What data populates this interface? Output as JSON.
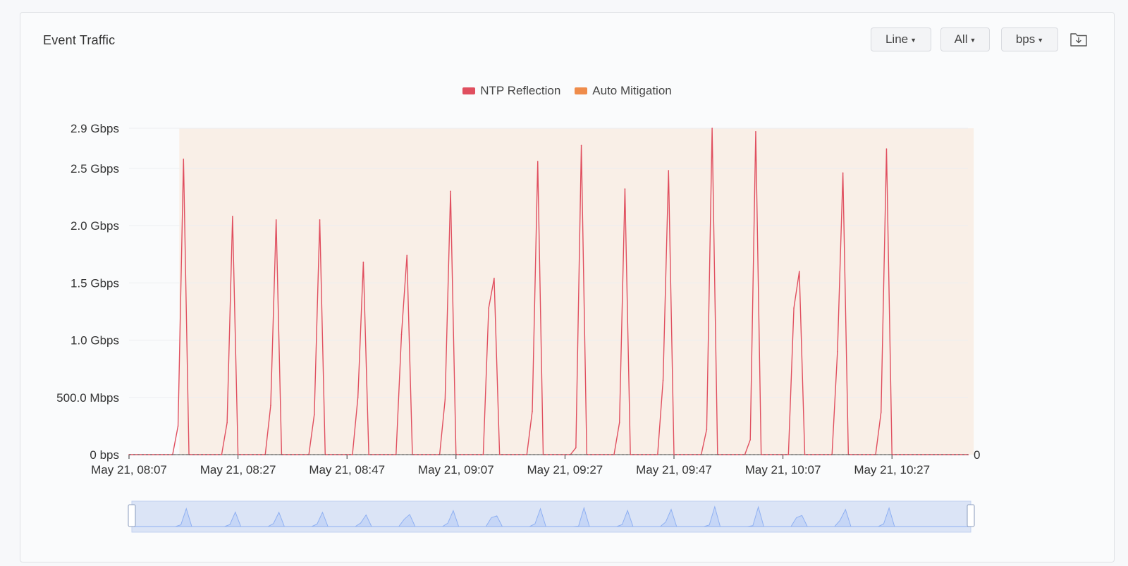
{
  "card": {
    "title": "Event Traffic"
  },
  "toolbar": {
    "chart_type": "Line",
    "filter": "All",
    "unit": "bps",
    "download_icon": "folder-download-icon"
  },
  "colors": {
    "ntp": "#e04f5f",
    "mitigation": "#ef8c4b",
    "mitigation_band": "#f9efe7",
    "zoom_bg": "#dbe4f6",
    "zoom_line": "#8fb0f2"
  },
  "chart_data": {
    "type": "line",
    "title": "",
    "legend": [
      "NTP Reflection",
      "Auto Mitigation"
    ],
    "legend_position": "top-center",
    "x_ticks": [
      "May 21, 08:07",
      "May 21, 08:27",
      "May 21, 08:47",
      "May 21, 09:07",
      "May 21, 09:27",
      "May 21, 09:47",
      "May 21, 10:07",
      "May 21, 10:27"
    ],
    "x_start_minutes": 487,
    "x_end_minutes": 641,
    "y_ticks": [
      "0 bps",
      "500.0 Mbps",
      "1.0 Gbps",
      "1.5 Gbps",
      "2.0 Gbps",
      "2.5 Gbps",
      "2.9 Gbps"
    ],
    "y_tick_values": [
      0,
      0.5,
      1.0,
      1.5,
      2.0,
      2.5,
      2.85
    ],
    "ylim": [
      0,
      2.85
    ],
    "y_unit": "Gbps",
    "right_axis_label": "0",
    "grid": true,
    "mitigation_window": [
      "08:17",
      "10:42"
    ],
    "series": [
      {
        "name": "NTP Reflection",
        "points": [
          [
            "08:07",
            0
          ],
          [
            "08:15",
            0
          ],
          [
            "08:16",
            0.25
          ],
          [
            "08:17",
            2.58
          ],
          [
            "08:18",
            0
          ],
          [
            "08:24",
            0
          ],
          [
            "08:25",
            0.28
          ],
          [
            "08:26",
            2.08
          ],
          [
            "08:27",
            0
          ],
          [
            "08:32",
            0
          ],
          [
            "08:33",
            0.43
          ],
          [
            "08:34",
            2.05
          ],
          [
            "08:35",
            0
          ],
          [
            "08:40",
            0
          ],
          [
            "08:41",
            0.35
          ],
          [
            "08:42",
            2.05
          ],
          [
            "08:43",
            0
          ],
          [
            "08:48",
            0
          ],
          [
            "08:49",
            0.5
          ],
          [
            "08:50",
            1.68
          ],
          [
            "08:51",
            0
          ],
          [
            "08:56",
            0
          ],
          [
            "08:57",
            1.05
          ],
          [
            "08:58",
            1.74
          ],
          [
            "08:59",
            0
          ],
          [
            "09:04",
            0
          ],
          [
            "09:05",
            0.48
          ],
          [
            "09:06",
            2.3
          ],
          [
            "09:07",
            0
          ],
          [
            "09:12",
            0
          ],
          [
            "09:13",
            1.28
          ],
          [
            "09:14",
            1.54
          ],
          [
            "09:15",
            0
          ],
          [
            "09:20",
            0
          ],
          [
            "09:21",
            0.38
          ],
          [
            "09:22",
            2.56
          ],
          [
            "09:23",
            0
          ],
          [
            "09:28",
            0
          ],
          [
            "09:29",
            0.06
          ],
          [
            "09:30",
            2.7
          ],
          [
            "09:31",
            0
          ],
          [
            "09:36",
            0
          ],
          [
            "09:37",
            0.28
          ],
          [
            "09:38",
            2.32
          ],
          [
            "09:39",
            0
          ],
          [
            "09:44",
            0
          ],
          [
            "09:45",
            0.65
          ],
          [
            "09:46",
            2.48
          ],
          [
            "09:47",
            0
          ],
          [
            "09:52",
            0
          ],
          [
            "09:53",
            0.22
          ],
          [
            "09:54",
            2.85
          ],
          [
            "09:55",
            0
          ],
          [
            "10:00",
            0
          ],
          [
            "10:01",
            0.13
          ],
          [
            "10:02",
            2.82
          ],
          [
            "10:03",
            0
          ],
          [
            "10:08",
            0
          ],
          [
            "10:09",
            1.28
          ],
          [
            "10:10",
            1.6
          ],
          [
            "10:11",
            0
          ],
          [
            "10:16",
            0
          ],
          [
            "10:17",
            0.9
          ],
          [
            "10:18",
            2.46
          ],
          [
            "10:19",
            0
          ],
          [
            "10:24",
            0
          ],
          [
            "10:25",
            0.37
          ],
          [
            "10:26",
            2.67
          ],
          [
            "10:27",
            0
          ],
          [
            "10:41",
            0
          ]
        ]
      },
      {
        "name": "Auto Mitigation",
        "points": []
      }
    ]
  }
}
